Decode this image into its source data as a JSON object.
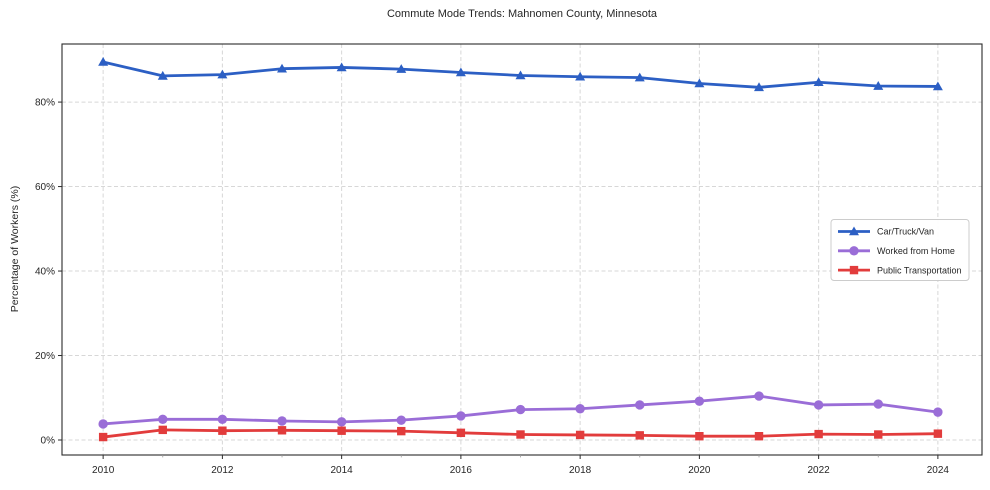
{
  "chart_data": {
    "type": "line",
    "title": "Commute Mode Trends: Mahnomen County, Minnesota",
    "xlabel": "",
    "ylabel": "Percentage of Workers (%)",
    "x": [
      2010,
      2011,
      2012,
      2013,
      2014,
      2015,
      2016,
      2017,
      2018,
      2019,
      2020,
      2021,
      2022,
      2023,
      2024
    ],
    "series": [
      {
        "name": "Car/Truck/Van",
        "color": "#2c5fc4",
        "marker": "triangle",
        "values": [
          89.5,
          86.2,
          86.5,
          87.9,
          88.2,
          87.8,
          87.0,
          86.3,
          86.0,
          85.8,
          84.4,
          83.5,
          84.7,
          83.8,
          83.7
        ]
      },
      {
        "name": "Worked from Home",
        "color": "#9a6dd7",
        "marker": "circle",
        "values": [
          3.8,
          4.9,
          4.9,
          4.5,
          4.3,
          4.7,
          5.7,
          7.2,
          7.4,
          8.3,
          9.2,
          10.4,
          8.3,
          8.5,
          6.6
        ]
      },
      {
        "name": "Public Transportation",
        "color": "#e23c3c",
        "marker": "square",
        "values": [
          0.7,
          2.4,
          2.2,
          2.3,
          2.2,
          2.1,
          1.7,
          1.3,
          1.2,
          1.1,
          0.9,
          0.9,
          1.4,
          1.3,
          1.5
        ]
      }
    ],
    "xticks": [
      2010,
      2012,
      2014,
      2016,
      2018,
      2020,
      2022,
      2024
    ],
    "xtick_labels": [
      "2010",
      "2012",
      "2014",
      "2016",
      "2018",
      "2020",
      "2022",
      "2024"
    ],
    "minor_xticks": [
      2011,
      2013,
      2015,
      2017,
      2019,
      2021,
      2023
    ],
    "yticks": [
      0,
      20,
      40,
      60,
      80
    ],
    "ytick_labels": [
      "0%",
      "20%",
      "40%",
      "60%",
      "80%"
    ],
    "xlim": [
      2009.31,
      2024.74
    ],
    "ylim": [
      -3.55,
      93.75
    ],
    "grid": true,
    "grid_style": "dashed",
    "legend_position": "center-right",
    "colors": {
      "grid": "#d7d7d7",
      "spine": "#2b2b2b",
      "text": "#262626",
      "minor_tick": "#999999",
      "legend_border": "#cccccc",
      "background": "#ffffff"
    }
  }
}
